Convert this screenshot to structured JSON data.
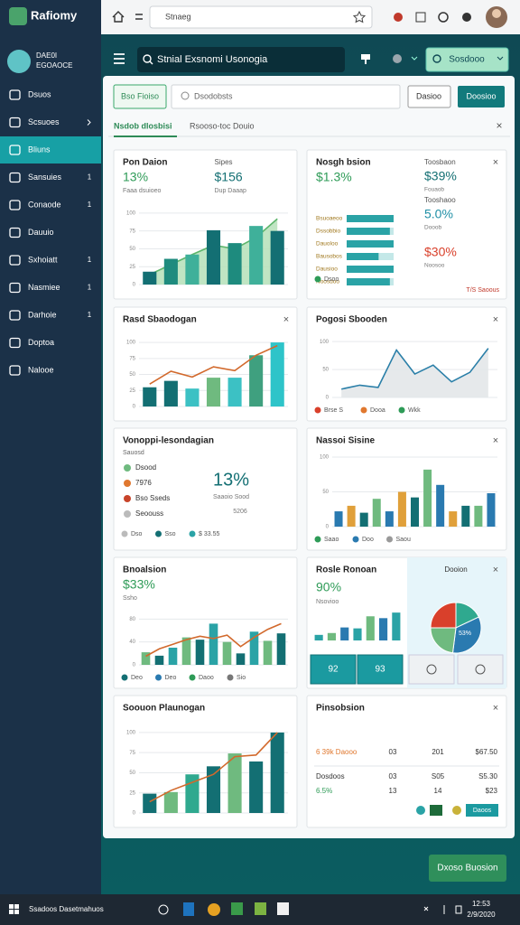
{
  "browser": {
    "address": "Stnaeg"
  },
  "sidebar": {
    "logo": "Rafiomy",
    "brand": [
      "DAE0I",
      "EGOAOCE"
    ],
    "active": 2,
    "items": [
      {
        "label": "Dsuos"
      },
      {
        "label": "Scsuoes",
        "chevron": true
      },
      {
        "label": "Bliuns"
      },
      {
        "label": "Sansuies",
        "badge": "1"
      },
      {
        "label": "Conaode",
        "badge": "1"
      },
      {
        "label": "Dauuio"
      },
      {
        "label": "Sxhoiatt",
        "badge": "1"
      },
      {
        "label": "Nasmiee",
        "badge": "1"
      },
      {
        "label": "Darhoie",
        "badge": "1"
      },
      {
        "label": "Doptoa"
      },
      {
        "label": "Nalooe"
      }
    ]
  },
  "header": {
    "search": "Stnial Exsnomi Usonogia",
    "button": "Sosdooo"
  },
  "toolbar": {
    "filter": "Bso Fioiso",
    "search": "Dsodobsts",
    "buttons": [
      "Dasioo",
      "Doosioo"
    ],
    "tabs": [
      "Nsdob dlosbisi",
      "Rsooso-toc Douio"
    ],
    "close": "×"
  },
  "cards": [
    {
      "type": "stats-chart",
      "title": "Pon Daion",
      "stats": [
        {
          "value": "13%",
          "note": "Faaa dsuioeo",
          "color": "#2e9b57"
        },
        {
          "label": "Sipes",
          "value": "$156",
          "note": "Dup Daaap",
          "color": "#136f73"
        }
      ],
      "chart": {
        "values": [
          18,
          36,
          42,
          76,
          58,
          82,
          75
        ],
        "colors": [
          "#136f73",
          "#1e8b7e",
          "#3fb09a"
        ],
        "area": [
          14,
          28,
          42,
          55,
          50,
          66,
          92
        ],
        "area_color": "#b5e0b8",
        "area_stroke": "#5db56b",
        "ylim": [
          0,
          110
        ],
        "yticks": [
          0,
          25,
          50,
          75,
          100
        ]
      }
    },
    {
      "type": "bars-list",
      "title": "Nosgh bsion",
      "close": "×",
      "value": "$1.3%",
      "color": "#2e9b57",
      "rows": [
        {
          "name": "Bsuoaeoo",
          "value": 100
        },
        {
          "name": "Dssobbio",
          "value": 92
        },
        {
          "name": "Dauoloo",
          "value": 100
        },
        {
          "name": "Bausobos",
          "value": 68
        },
        {
          "name": "Dausioo",
          "value": 100
        },
        {
          "name": "Noosdoo",
          "value": 92
        }
      ],
      "xlim": [
        0,
        100
      ],
      "bar_color": "#2aa3a6",
      "bar_track": "#c4e8e8",
      "legend": [
        {
          "name": "Dsoo",
          "color": "#2e9b57"
        }
      ],
      "side": [
        {
          "label": "Toosbaon",
          "value": "$39%",
          "note": "Fouaob",
          "color": "#136f73"
        },
        {
          "label": "Tooshaoo",
          "value": "5.0%",
          "note": "Dooob",
          "color": "#1f8fa6"
        },
        {
          "value": "$30%",
          "note": "Noosoo",
          "color": "#d9402b"
        }
      ],
      "footer": "T/S Saoous"
    },
    {
      "type": "stats-chart",
      "title": "Rasd Sbaodogan",
      "close": "×",
      "chart": {
        "values": [
          30,
          40,
          28,
          45,
          45,
          80,
          100
        ],
        "colors": [
          "#136f73",
          "#136f73",
          "#3cc1c4",
          "#6fba7f",
          "#3cc1c4",
          "#3fa07f",
          "#2ec4c9"
        ],
        "line": [
          35,
          55,
          46,
          62,
          56,
          80,
          95
        ],
        "line_color": "#d2692c",
        "ylim": [
          0,
          110
        ],
        "yticks": [
          0,
          25,
          50,
          75,
          100
        ]
      }
    },
    {
      "type": "stats-chart",
      "title": "Pogosi Sbooden",
      "close": "×",
      "chart": {
        "area": [
          15,
          22,
          18,
          85,
          42,
          58,
          28,
          45,
          88
        ],
        "area_color": "#e2e5e8",
        "area_stroke": "#2a7fa8",
        "ylim": [
          0,
          110
        ],
        "yticks": [
          0,
          50,
          100
        ]
      },
      "legend": [
        {
          "name": "Brse S",
          "color": "#d9402b"
        },
        {
          "name": "Dooa",
          "color": "#e0782f"
        },
        {
          "name": "Wkk",
          "color": "#2e9b57"
        }
      ]
    },
    {
      "type": "legend-stat",
      "title": "Vonoppi-lesondagian",
      "subtitle": "Sauosd",
      "items": [
        {
          "name": "Dsood",
          "color": "#6fba7f"
        },
        {
          "name": "7976",
          "color": "#e0782f"
        },
        {
          "name": "Bso Sseds",
          "color": "#c8442a"
        },
        {
          "name": "Seoouss",
          "color": "#bbbbbb"
        }
      ],
      "value": "13%",
      "note": "Saaoio Sood",
      "value2": "5206",
      "legend": [
        {
          "name": "Dso",
          "color": "#bbbbbb"
        },
        {
          "name": "Sso",
          "color": "#136f73"
        },
        {
          "name": "$ 33.55",
          "color": "#2aa3a6"
        }
      ]
    },
    {
      "type": "stats-chart",
      "title": "Nassoi Sisine",
      "close": "×",
      "chart": {
        "values": [
          22,
          30,
          20,
          40,
          22,
          50,
          42,
          82,
          60,
          22,
          30,
          30,
          48
        ],
        "colors": [
          "#2a7ab0",
          "#e0a03a",
          "#136f73",
          "#6fba7f"
        ],
        "ylim": [
          0,
          100
        ],
        "yticks": [
          0,
          50,
          100
        ]
      },
      "legend": [
        {
          "name": "Saao",
          "color": "#2e9b57"
        },
        {
          "name": "Doo",
          "color": "#2a7ab0"
        },
        {
          "name": "Saou",
          "color": "#999999"
        }
      ]
    },
    {
      "type": "stats-chart",
      "title": "Bnoalsion",
      "stats": [
        {
          "value": "$33%",
          "note": "Ssho",
          "color": "#2e9b57"
        }
      ],
      "chart": {
        "values": [
          22,
          16,
          30,
          48,
          44,
          72,
          40,
          20,
          58,
          42,
          55
        ],
        "colors": [
          "#6fba7f",
          "#136f73",
          "#2aa3a6"
        ],
        "line": [
          15,
          28,
          36,
          44,
          50,
          46,
          52,
          32,
          48,
          62,
          72
        ],
        "line_color": "#d2692c",
        "ylim": [
          0,
          90
        ],
        "yticks": [
          0,
          40,
          80
        ]
      },
      "legend": [
        {
          "name": "Deo",
          "color": "#136f73"
        },
        {
          "name": "Deo",
          "color": "#2a7ab0"
        },
        {
          "name": "Daoo",
          "color": "#2e9b57"
        },
        {
          "name": "Sio",
          "color": "#777777"
        }
      ]
    },
    {
      "type": "split-pie",
      "title": "Rosle Ronoan",
      "close": "×",
      "value": "90%",
      "note": "Nsovioo",
      "color": "#2e9b57",
      "chart": {
        "values": [
          12,
          16,
          28,
          26,
          52,
          48,
          60
        ],
        "colors": [
          "#2aa3a6",
          "#6fba7f",
          "#2a7ab0"
        ],
        "ylim": [
          0,
          70
        ]
      },
      "pie": {
        "label": "Dooion",
        "values": [
          25,
          18,
          34,
          23
        ],
        "colors": [
          "#d9402b",
          "#2fa98f",
          "#2a7ab0",
          "#6fba7f"
        ],
        "value_label": "53%"
      },
      "tiles": [
        "92",
        "93"
      ]
    },
    {
      "type": "stats-chart",
      "title": "Soouon Plaunogan",
      "chart": {
        "values": [
          24,
          26,
          48,
          58,
          74,
          64,
          100
        ],
        "colors": [
          "#136f73",
          "#6fba7f",
          "#2fa98f",
          "#136f73",
          "#6fba7f",
          "#136f73",
          "#136f73"
        ],
        "line": [
          14,
          28,
          38,
          48,
          70,
          72,
          100
        ],
        "line_color": "#d2692c",
        "ylim": [
          0,
          110
        ],
        "yticks": [
          0,
          25,
          50,
          75,
          100
        ]
      }
    },
    {
      "type": "table",
      "title": "Pinsobsion",
      "close": "×",
      "rows": [
        [
          "6 39k Daooo",
          "03",
          "201",
          "$67.50"
        ],
        [
          "Dosdoos",
          "03",
          "S05",
          "S5.30"
        ],
        [
          "6.5%",
          "13",
          "14",
          "$23"
        ]
      ],
      "first_colors": [
        "#e0782f",
        "#333333",
        "#2e9b57"
      ],
      "footer_button": "Daoos"
    }
  ],
  "footer_button": "Dxoso Buosion",
  "taskbar": {
    "search": "Ssadoos Dasetmahuos",
    "time": "12:53",
    "date": "2/9/2020"
  }
}
